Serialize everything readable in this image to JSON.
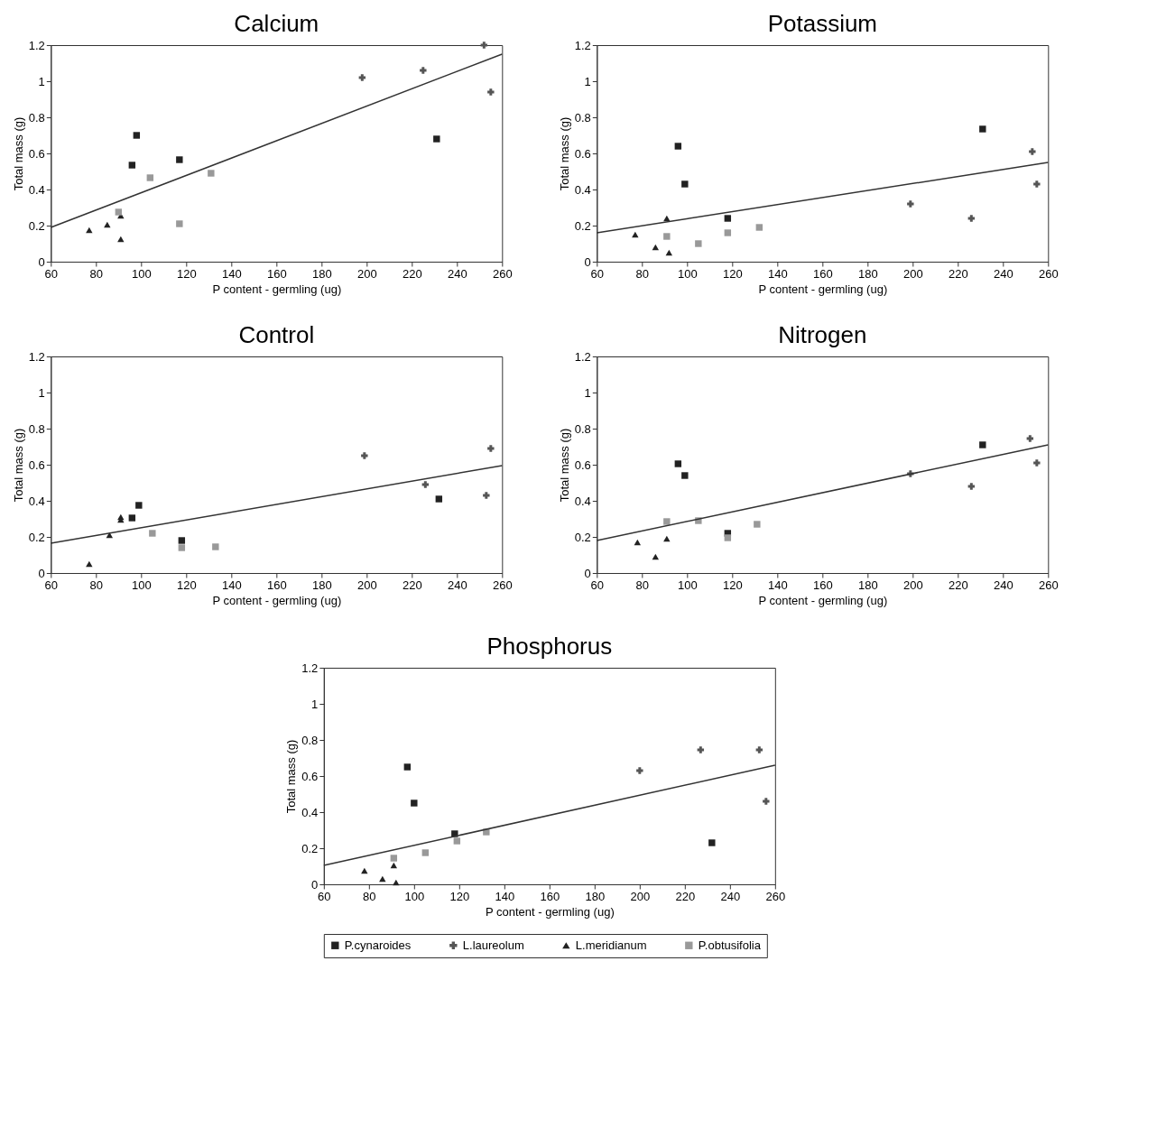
{
  "chart_data": [
    {
      "type": "scatter",
      "title": "Calcium",
      "xlabel": "P content - germling (ug)",
      "ylabel": "Total mass (g)",
      "xlim": [
        60,
        260
      ],
      "ylim": [
        0,
        1.2
      ],
      "xticks": [
        60,
        80,
        100,
        120,
        140,
        160,
        180,
        200,
        220,
        240,
        260
      ],
      "yticks": [
        0,
        0.2,
        0.4,
        0.6,
        0.8,
        1,
        1.2
      ],
      "grid": false,
      "legend": false,
      "series": [
        {
          "marker": "square",
          "color": "#222222",
          "x": [
            98,
            96,
            117,
            231
          ],
          "values": [
            0.7,
            0.535,
            0.565,
            0.68
          ]
        },
        {
          "marker": "cross",
          "color": "#555555",
          "x": [
            198,
            225,
            252,
            255
          ],
          "values": [
            1.02,
            1.06,
            1.2,
            0.94
          ]
        },
        {
          "marker": "triangle",
          "color": "#222222",
          "x": [
            77,
            85,
            91,
            91
          ],
          "values": [
            0.175,
            0.205,
            0.255,
            0.125
          ]
        },
        {
          "marker": "square",
          "color": "#999999",
          "x": [
            90,
            104,
            117,
            131
          ],
          "values": [
            0.275,
            0.465,
            0.21,
            0.49
          ]
        },
        {
          "type": "line",
          "color": "#333333",
          "x": [
            60,
            260
          ],
          "values": [
            0.19,
            1.15
          ]
        }
      ]
    },
    {
      "type": "scatter",
      "title": "Potassium",
      "xlabel": "P content - germling (ug)",
      "ylabel": "Total mass (g)",
      "xlim": [
        60,
        260
      ],
      "ylim": [
        0,
        1.2
      ],
      "xticks": [
        60,
        80,
        100,
        120,
        140,
        160,
        180,
        200,
        220,
        240,
        260
      ],
      "yticks": [
        0,
        0.2,
        0.4,
        0.6,
        0.8,
        1,
        1.2
      ],
      "grid": false,
      "legend": false,
      "series": [
        {
          "marker": "square",
          "color": "#222222",
          "x": [
            96,
            99,
            118,
            231
          ],
          "values": [
            0.64,
            0.43,
            0.24,
            0.735
          ]
        },
        {
          "marker": "cross",
          "color": "#555555",
          "x": [
            199,
            226,
            253,
            255
          ],
          "values": [
            0.32,
            0.24,
            0.61,
            0.43
          ]
        },
        {
          "marker": "triangle",
          "color": "#222222",
          "x": [
            77,
            86,
            91,
            92
          ],
          "values": [
            0.15,
            0.08,
            0.24,
            0.05
          ]
        },
        {
          "marker": "square",
          "color": "#999999",
          "x": [
            91,
            105,
            118,
            132
          ],
          "values": [
            0.14,
            0.1,
            0.16,
            0.19
          ]
        },
        {
          "type": "line",
          "color": "#333333",
          "x": [
            60,
            260
          ],
          "values": [
            0.16,
            0.55
          ]
        }
      ]
    },
    {
      "type": "scatter",
      "title": "Control",
      "xlabel": "P content - germling (ug)",
      "ylabel": "Total mass (g)",
      "xlim": [
        60,
        260
      ],
      "ylim": [
        0,
        1.2
      ],
      "xticks": [
        60,
        80,
        100,
        120,
        140,
        160,
        180,
        200,
        220,
        240,
        260
      ],
      "yticks": [
        0,
        0.2,
        0.4,
        0.6,
        0.8,
        1,
        1.2
      ],
      "grid": false,
      "legend": false,
      "series": [
        {
          "marker": "square",
          "color": "#222222",
          "x": [
            99,
            96,
            118,
            232
          ],
          "values": [
            0.375,
            0.305,
            0.18,
            0.41
          ]
        },
        {
          "marker": "cross",
          "color": "#555555",
          "x": [
            199,
            226,
            255,
            253
          ],
          "values": [
            0.65,
            0.49,
            0.69,
            0.43
          ]
        },
        {
          "marker": "triangle",
          "color": "#222222",
          "x": [
            77,
            86,
            91,
            91
          ],
          "values": [
            0.05,
            0.21,
            0.31,
            0.295
          ]
        },
        {
          "marker": "square",
          "color": "#999999",
          "x": [
            105,
            118,
            133
          ],
          "values": [
            0.22,
            0.14,
            0.145
          ]
        },
        {
          "type": "line",
          "color": "#333333",
          "x": [
            60,
            260
          ],
          "values": [
            0.165,
            0.595
          ]
        }
      ]
    },
    {
      "type": "scatter",
      "title": "Nitrogen",
      "xlabel": "P content - germling (ug)",
      "ylabel": "Total mass (g)",
      "xlim": [
        60,
        260
      ],
      "ylim": [
        0,
        1.2
      ],
      "xticks": [
        60,
        80,
        100,
        120,
        140,
        160,
        180,
        200,
        220,
        240,
        260
      ],
      "yticks": [
        0,
        0.2,
        0.4,
        0.6,
        0.8,
        1,
        1.2
      ],
      "grid": false,
      "legend": false,
      "series": [
        {
          "marker": "square",
          "color": "#222222",
          "x": [
            96,
            99,
            118,
            231
          ],
          "values": [
            0.605,
            0.54,
            0.22,
            0.71
          ]
        },
        {
          "marker": "cross",
          "color": "#555555",
          "x": [
            199,
            226,
            252,
            255
          ],
          "values": [
            0.55,
            0.48,
            0.745,
            0.61
          ]
        },
        {
          "marker": "triangle",
          "color": "#222222",
          "x": [
            78,
            86,
            91
          ],
          "values": [
            0.17,
            0.09,
            0.19
          ]
        },
        {
          "marker": "square",
          "color": "#999999",
          "x": [
            91,
            105,
            118,
            131
          ],
          "values": [
            0.285,
            0.29,
            0.195,
            0.27
          ]
        },
        {
          "type": "line",
          "color": "#333333",
          "x": [
            60,
            260
          ],
          "values": [
            0.18,
            0.71
          ]
        }
      ]
    },
    {
      "type": "scatter",
      "title": "Phosphorus",
      "xlabel": "P content - germling (ug)",
      "ylabel": "Total mass (g)",
      "xlim": [
        60,
        260
      ],
      "ylim": [
        0,
        1.2
      ],
      "xticks": [
        60,
        80,
        100,
        120,
        140,
        160,
        180,
        200,
        220,
        240,
        260
      ],
      "yticks": [
        0,
        0.2,
        0.4,
        0.6,
        0.8,
        1,
        1.2
      ],
      "grid": false,
      "legend": "bottom",
      "series": [
        {
          "name": "P.cynaroides",
          "marker": "square",
          "color": "#222222",
          "x": [
            97,
            100,
            118,
            232
          ],
          "values": [
            0.65,
            0.45,
            0.28,
            0.23
          ]
        },
        {
          "name": "L.laureolum",
          "marker": "cross",
          "color": "#555555",
          "x": [
            200,
            227,
            253,
            256
          ],
          "values": [
            0.63,
            0.745,
            0.745,
            0.46
          ]
        },
        {
          "name": "L.meridianum",
          "marker": "triangle",
          "color": "#222222",
          "x": [
            78,
            86,
            91,
            92
          ],
          "values": [
            0.075,
            0.03,
            0.105,
            0.01
          ]
        },
        {
          "name": "P.obtusifolia",
          "marker": "square",
          "color": "#999999",
          "x": [
            91,
            105,
            119,
            132
          ],
          "values": [
            0.145,
            0.175,
            0.24,
            0.29
          ]
        },
        {
          "type": "line",
          "color": "#333333",
          "x": [
            60,
            260
          ],
          "values": [
            0.105,
            0.66
          ]
        }
      ]
    }
  ]
}
